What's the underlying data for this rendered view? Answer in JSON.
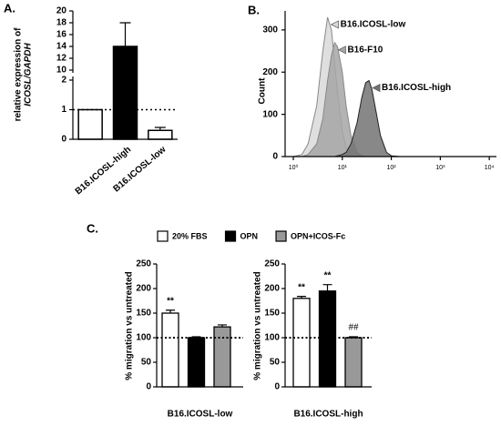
{
  "chart_data": [
    {
      "type": "bar",
      "label": "A.",
      "ylabel": [
        "relative expression of",
        "ICOSL/GAPDH"
      ],
      "categories": [
        null,
        "B16.ICOSL-high",
        "B16.ICOSL-low"
      ],
      "values": [
        1,
        14,
        0.3
      ],
      "errors": [
        null,
        4,
        0.1
      ],
      "colors": [
        "#ffffff",
        "#000000",
        "#ffffff"
      ],
      "ylim": [
        0,
        20
      ],
      "yticks": [
        0,
        1,
        2,
        10,
        12,
        14,
        16,
        18,
        20
      ],
      "ybreak": [
        2,
        10
      ],
      "refline": 1
    },
    {
      "type": "area",
      "label": "B.",
      "ylabel": "Count",
      "x": [
        1,
        1.5,
        2,
        3,
        4,
        5,
        6,
        7,
        8,
        10,
        12,
        15,
        20,
        25,
        30,
        35,
        40,
        50,
        60,
        80,
        100,
        150
      ],
      "series": [
        {
          "name": "B16.ICOSL-low",
          "color": "#d9d9d9",
          "values": [
            0,
            5,
            30,
            120,
            250,
            330,
            300,
            220,
            150,
            60,
            20,
            5,
            0,
            0,
            0,
            0,
            0,
            0,
            0,
            0,
            0,
            0
          ]
        },
        {
          "name": "B16-F10",
          "color": "#a6a6a6",
          "values": [
            0,
            0,
            5,
            30,
            90,
            180,
            240,
            270,
            260,
            200,
            120,
            50,
            10,
            2,
            0,
            0,
            0,
            0,
            0,
            0,
            0,
            0
          ]
        },
        {
          "name": "B16.ICOSL-high",
          "color": "#737373",
          "values": [
            0,
            0,
            0,
            0,
            0,
            0,
            0,
            0,
            2,
            5,
            10,
            30,
            80,
            140,
            175,
            180,
            160,
            100,
            50,
            10,
            2,
            0
          ]
        }
      ],
      "xlog": true,
      "xlim": [
        0.68,
        14000
      ],
      "xticks": [
        {
          "value": 1,
          "label": "10⁰"
        },
        {
          "value": 10,
          "label": "10¹"
        },
        {
          "value": 100,
          "label": "10²"
        },
        {
          "value": 1000,
          "label": "10³"
        },
        {
          "value": 10000,
          "label": "10⁴"
        }
      ],
      "ylim": [
        0,
        345
      ],
      "yticks": [
        0,
        100,
        200,
        300
      ]
    },
    {
      "type": "grouped-bar",
      "label": "C.",
      "ylabel": "% migration vs untreated",
      "categories": [
        "B16.ICOSL-low",
        "B16.ICOSL-high"
      ],
      "series": [
        {
          "name": "20% FBS",
          "color": "#ffffff",
          "values": [
            150,
            180
          ],
          "errors": [
            6,
            4
          ],
          "sig": [
            "**",
            "**"
          ]
        },
        {
          "name": "OPN",
          "color": "#000000",
          "values": [
            100,
            195
          ],
          "errors": [
            2,
            13
          ],
          "sig": [
            null,
            "**"
          ]
        },
        {
          "name": "OPN+ICOS-Fc",
          "color": "#999999",
          "values": [
            122,
            100
          ],
          "errors": [
            4,
            2
          ],
          "sig": [
            null,
            "##"
          ]
        }
      ],
      "ylim": [
        0,
        250
      ],
      "yticks": [
        0,
        50,
        100,
        150,
        200,
        250
      ],
      "refline": 100,
      "legend": "top"
    }
  ]
}
